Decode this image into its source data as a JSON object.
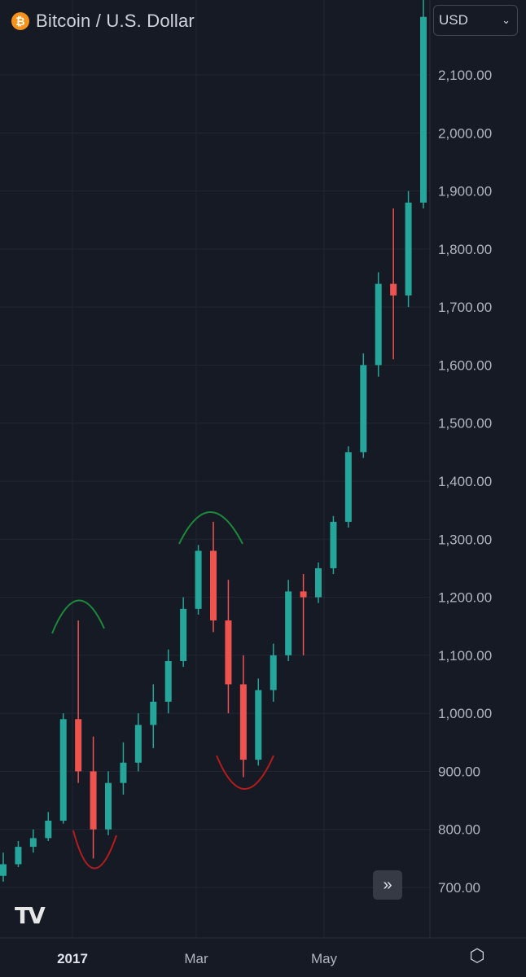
{
  "header": {
    "title": "Bitcoin / U.S. Dollar",
    "icon": "bitcoin-icon",
    "currency": "USD"
  },
  "chart_data": {
    "type": "candlestick",
    "title": "Bitcoin / U.S. Dollar",
    "ylim": [
      640,
      2240
    ],
    "y_ticks": [
      "2,100.00",
      "2,000.00",
      "1,900.00",
      "1,800.00",
      "1,700.00",
      "1,600.00",
      "1,500.00",
      "1,400.00",
      "1,300.00",
      "1,200.00",
      "1,100.00",
      "1,000.00",
      "900.00",
      "800.00",
      "700.00"
    ],
    "x_ticks": [
      "2017",
      "Mar",
      "May"
    ],
    "grid": true,
    "up_color": "#26a69a",
    "down_color": "#ef5350",
    "series": [
      {
        "values": [
          [
            720,
            760,
            710,
            740
          ],
          [
            740,
            780,
            735,
            770
          ],
          [
            770,
            800,
            760,
            785
          ],
          [
            785,
            830,
            780,
            815
          ],
          [
            815,
            1000,
            810,
            990
          ],
          [
            990,
            1160,
            880,
            900
          ],
          [
            900,
            960,
            750,
            800
          ],
          [
            800,
            900,
            790,
            880
          ],
          [
            880,
            950,
            860,
            915
          ],
          [
            915,
            1000,
            900,
            980
          ],
          [
            980,
            1050,
            940,
            1020
          ],
          [
            1020,
            1110,
            1000,
            1090
          ],
          [
            1090,
            1200,
            1080,
            1180
          ],
          [
            1180,
            1290,
            1170,
            1280
          ],
          [
            1280,
            1330,
            1140,
            1160
          ],
          [
            1160,
            1230,
            1000,
            1050
          ],
          [
            1050,
            1100,
            890,
            920
          ],
          [
            920,
            1060,
            910,
            1040
          ],
          [
            1040,
            1120,
            1020,
            1100
          ],
          [
            1100,
            1230,
            1090,
            1210
          ],
          [
            1210,
            1240,
            1100,
            1200
          ],
          [
            1200,
            1260,
            1190,
            1250
          ],
          [
            1250,
            1340,
            1240,
            1330
          ],
          [
            1330,
            1460,
            1320,
            1450
          ],
          [
            1450,
            1620,
            1440,
            1600
          ],
          [
            1600,
            1760,
            1580,
            1740
          ],
          [
            1740,
            1870,
            1610,
            1720
          ],
          [
            1720,
            1900,
            1700,
            1880
          ],
          [
            1880,
            2250,
            1870,
            2200
          ]
        ]
      }
    ],
    "annotations": [
      {
        "type": "arc",
        "color": "#1b8a3a",
        "label": "top"
      },
      {
        "type": "arc",
        "color": "#b71c1c",
        "label": "bottom"
      },
      {
        "type": "arc",
        "color": "#1b8a3a",
        "label": "top"
      },
      {
        "type": "arc",
        "color": "#b71c1c",
        "label": "bottom"
      }
    ]
  },
  "controls": {
    "scroll_icon": "double-chevron-right-icon",
    "settings_icon": "settings-icon",
    "logo": "tradingview-logo"
  }
}
